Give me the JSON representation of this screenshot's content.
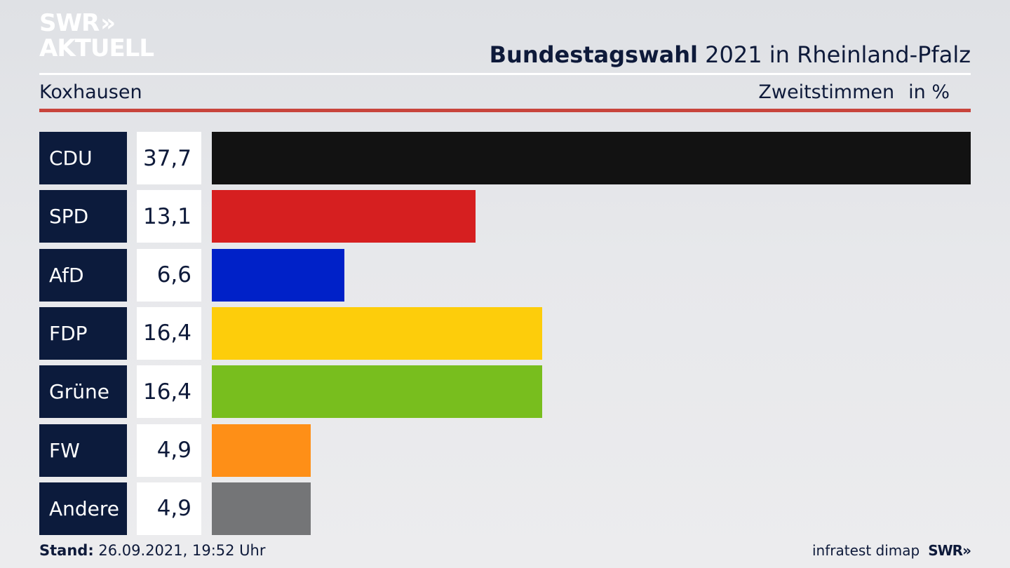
{
  "logo": {
    "line1": "SWR",
    "chevrons": "»",
    "line2": "AKTUELL"
  },
  "header": {
    "title_bold": "Bundestagswahl",
    "title_rest": " 2021 in Rheinland-Pfalz",
    "region": "Koxhausen",
    "measure": "Zweitstimmen",
    "unit": "in %"
  },
  "colors": {
    "label_bg": "#0c1b3c",
    "accent_rule": "#c8443c"
  },
  "chart_data": {
    "type": "bar",
    "orientation": "horizontal",
    "categories": [
      "CDU",
      "SPD",
      "AfD",
      "FDP",
      "Grüne",
      "FW",
      "Andere"
    ],
    "values": [
      37.7,
      13.1,
      6.6,
      16.4,
      16.4,
      4.9,
      4.9
    ],
    "value_labels": [
      "37,7",
      "13,1",
      "6,6",
      "16,4",
      "16,4",
      "4,9",
      "4,9"
    ],
    "colors": [
      "#121212",
      "#d61f20",
      "#0021c8",
      "#fdcd0b",
      "#78be1e",
      "#fe8f17",
      "#747577"
    ],
    "xlim": [
      0,
      37.7
    ],
    "grid": false
  },
  "footer": {
    "stand_label": "Stand:",
    "stand_value": " 26.09.2021, 19:52 Uhr",
    "source": "infratest dimap",
    "brand": "SWR»"
  }
}
